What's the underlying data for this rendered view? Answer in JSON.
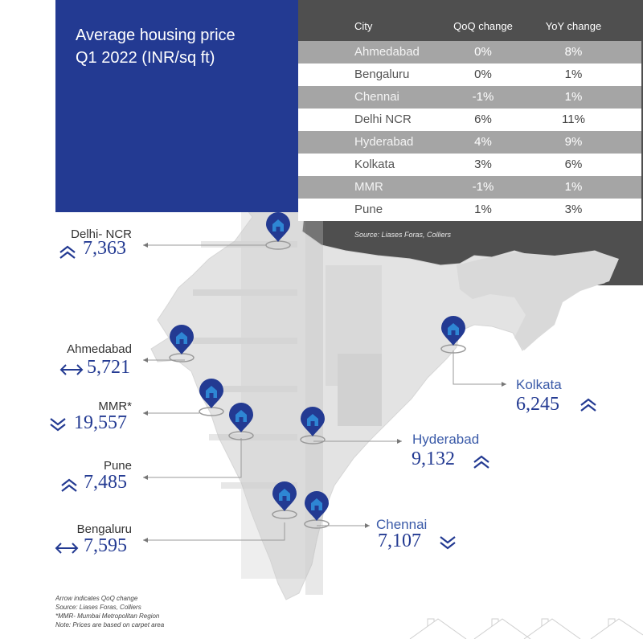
{
  "title": {
    "line1": "Average housing price",
    "line2": "Q1 2022 (INR/sq ft)"
  },
  "table": {
    "headers": {
      "city": "City",
      "qoq": "QoQ change",
      "yoy": "YoY change"
    },
    "rows": [
      {
        "city": "Ahmedabad",
        "qoq": "0%",
        "yoy": "8%"
      },
      {
        "city": "Bengaluru",
        "qoq": "0%",
        "yoy": "1%"
      },
      {
        "city": "Chennai",
        "qoq": "-1%",
        "yoy": "1%"
      },
      {
        "city": "Delhi NCR",
        "qoq": "6%",
        "yoy": "11%"
      },
      {
        "city": "Hyderabad",
        "qoq": "4%",
        "yoy": "9%"
      },
      {
        "city": "Kolkata",
        "qoq": "3%",
        "yoy": "6%"
      },
      {
        "city": "MMR",
        "qoq": "-1%",
        "yoy": "1%"
      },
      {
        "city": "Pune",
        "qoq": "1%",
        "yoy": "3%"
      }
    ],
    "source": "Source: Liases Foras, Colliers"
  },
  "cities": {
    "delhi": {
      "name": "Delhi- NCR",
      "price": "7,363",
      "trend": "up"
    },
    "ahmedabad": {
      "name": "Ahmedabad",
      "price": "5,721",
      "trend": "flat"
    },
    "mmr": {
      "name": "MMR*",
      "price": "19,557",
      "trend": "down"
    },
    "pune": {
      "name": "Pune",
      "price": "7,485",
      "trend": "up"
    },
    "bengaluru": {
      "name": "Bengaluru",
      "price": "7,595",
      "trend": "flat"
    },
    "kolkata": {
      "name": "Kolkata",
      "price": "6,245",
      "trend": "up"
    },
    "hyderabad": {
      "name": "Hyderabad",
      "price": "9,132",
      "trend": "up"
    },
    "chennai": {
      "name": "Chennai",
      "price": "7,107",
      "trend": "down"
    }
  },
  "notes": {
    "line1": "Arrow indicates QoQ change",
    "line2": "Source: Liases Foras, Colliers",
    "line3": "*MMR- Mumbai Metropolitan Region",
    "line4": "Note: Prices are based on carpet area"
  },
  "colors": {
    "brand_blue": "#233a92",
    "dark_panel": "#4f4f4f",
    "table_band": "#a5a5a5",
    "pin": "#233a92",
    "map_fill": "#e2e2e2"
  },
  "icons": {
    "pin": "house-pin-icon",
    "up": "double-chevron-up-icon",
    "down": "double-chevron-down-icon",
    "flat": "left-right-arrow-icon"
  }
}
